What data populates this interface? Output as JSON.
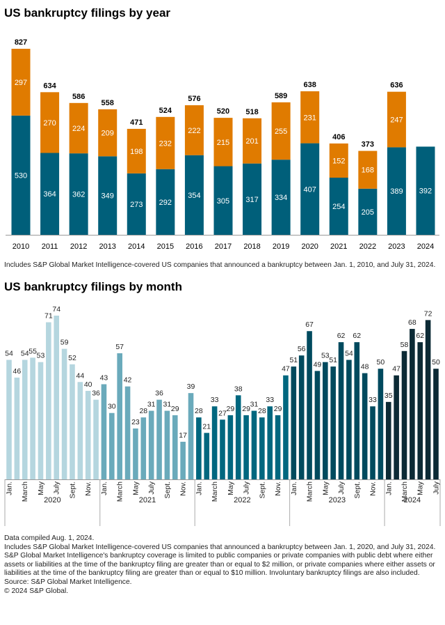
{
  "chart_data": [
    {
      "type": "bar",
      "stacked": true,
      "title": "US bankruptcy filings by year",
      "categories": [
        "2010",
        "2011",
        "2012",
        "2013",
        "2014",
        "2015",
        "2016",
        "2017",
        "2018",
        "2019",
        "2020",
        "2021",
        "2022",
        "2023",
        "2024"
      ],
      "series": [
        {
          "values": [
            530,
            364,
            362,
            349,
            273,
            292,
            354,
            305,
            317,
            334,
            407,
            254,
            205,
            389,
            392
          ],
          "color": "#005f7a"
        },
        {
          "values": [
            297,
            270,
            224,
            209,
            198,
            232,
            222,
            215,
            201,
            255,
            231,
            152,
            168,
            247,
            null
          ],
          "color": "#e07b00"
        }
      ],
      "totals": [
        827,
        634,
        586,
        558,
        471,
        524,
        576,
        520,
        518,
        589,
        638,
        406,
        373,
        636,
        null
      ],
      "ylim": [
        0,
        827
      ],
      "grid": false,
      "footnote": "Includes S&P Global Market Intelligence-covered US companies that announced a bankruptcy between Jan. 1, 2010, and July 31, 2024."
    },
    {
      "type": "bar",
      "title": "US bankruptcy filings by month",
      "month_tick_labels": [
        "Jan.",
        "March",
        "May",
        "July",
        "Sept.",
        "Nov."
      ],
      "groups": [
        {
          "year": "2020",
          "color": "#b5d6df",
          "values": [
            54,
            46,
            54,
            55,
            53,
            71,
            74,
            59,
            52,
            44,
            40,
            36
          ]
        },
        {
          "year": "2021",
          "color": "#6aaabb",
          "values": [
            43,
            30,
            57,
            42,
            23,
            28,
            31,
            36,
            31,
            29,
            17,
            39
          ]
        },
        {
          "year": "2022",
          "color": "#00677f",
          "values": [
            28,
            21,
            33,
            27,
            29,
            38,
            29,
            31,
            28,
            33,
            29,
            47
          ]
        },
        {
          "year": "2023",
          "color": "#004a5e",
          "values": [
            51,
            56,
            67,
            49,
            53,
            51,
            62,
            54,
            62,
            48,
            33,
            50
          ]
        },
        {
          "year": "2024",
          "color": "#0c2a35",
          "values": [
            35,
            47,
            58,
            68,
            62,
            72,
            50
          ]
        }
      ],
      "ylim": [
        0,
        74
      ],
      "grid": false
    }
  ],
  "notes": [
    "Data compiled Aug. 1, 2024.",
    "Includes S&P Global Market Intelligence-covered US companies that announced a bankruptcy between Jan. 1, 2020, and July 31, 2024.",
    "S&P Global Market Intelligence's bankruptcy coverage is limited to public companies or private companies with public debt where either assets or liabilities at the time of the bankruptcy filing are greater than or equal to $2 million, or private companies where either assets or liabilities at the time of the bankruptcy filing are greater than or equal to $10 million. Involuntary bankruptcy filings are also included.",
    "Source: S&P Global Market Intelligence.",
    "© 2024 S&P Global."
  ]
}
